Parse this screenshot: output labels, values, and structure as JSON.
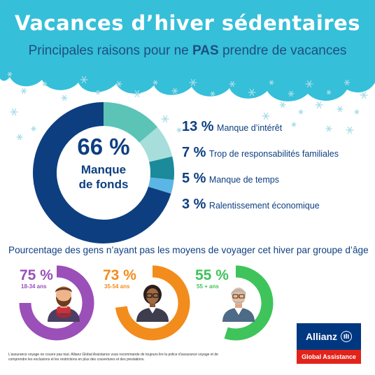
{
  "title": "Vacances d’hiver sédentaires",
  "subtitle": {
    "before": "Principales raisons pour ne ",
    "emphasis": "PAS",
    "after": " prendre de vacances"
  },
  "colors": {
    "sky": "#35bfd9",
    "navy": "#0d3f80",
    "teal": "#5cc3b7",
    "light_teal": "#a7dedb",
    "dark_teal": "#1b8a9a",
    "light_blue": "#5bb6e6",
    "purple": "#9b4fb8",
    "orange": "#f28c1c",
    "green": "#3ec45a"
  },
  "main_center": {
    "value": "66 %",
    "label_line1": "Manque",
    "label_line2": "de fonds"
  },
  "reasons": [
    {
      "pct": "13 %",
      "label": "Manque d’intérêt"
    },
    {
      "pct": "7 %",
      "label": "Trop de responsabilités familiales"
    },
    {
      "pct": "5 %",
      "label": "Manque de temps"
    },
    {
      "pct": "3 %",
      "label": "Ralentissement économique"
    }
  ],
  "age_section_title": "Pourcentage des gens n’ayant pas les moyens de voyager cet hiver par groupe d’âge",
  "age_groups": [
    {
      "pct": "75 %",
      "range": "18-34 ans"
    },
    {
      "pct": "73 %",
      "range": "35-54 ans"
    },
    {
      "pct": "55 %",
      "range": "55 + ans"
    }
  ],
  "logo": {
    "brand": "Allianz",
    "sub": "Global Assistance"
  },
  "disclaimer": "L’assurance voyage ne couvre pas tout. Allianz Global Assistance vous recommande de toujours lire la police d’assurance voyage et de comprendre les exclusions et les restrictions en plus des couvertures et des prestations.",
  "chart_data": [
    {
      "type": "pie",
      "title": "Principales raisons pour ne PAS prendre de vacances",
      "categories": [
        "Manque de fonds",
        "Manque d’intérêt",
        "Trop de responsabilités familiales",
        "Manque de temps",
        "Ralentissement économique"
      ],
      "values": [
        66,
        13,
        7,
        5,
        3
      ],
      "unit": "%",
      "colors": [
        "#0d3f80",
        "#5cc3b7",
        "#a7dedb",
        "#1b8a9a",
        "#5bb6e6"
      ]
    },
    {
      "type": "pie",
      "title": "Pourcentage des gens n’ayant pas les moyens de voyager cet hiver par groupe d’âge",
      "categories": [
        "18-34 ans",
        "35-54 ans",
        "55 + ans"
      ],
      "values": [
        75,
        73,
        55
      ],
      "unit": "%",
      "colors": [
        "#9b4fb8",
        "#f28c1c",
        "#3ec45a"
      ]
    }
  ]
}
